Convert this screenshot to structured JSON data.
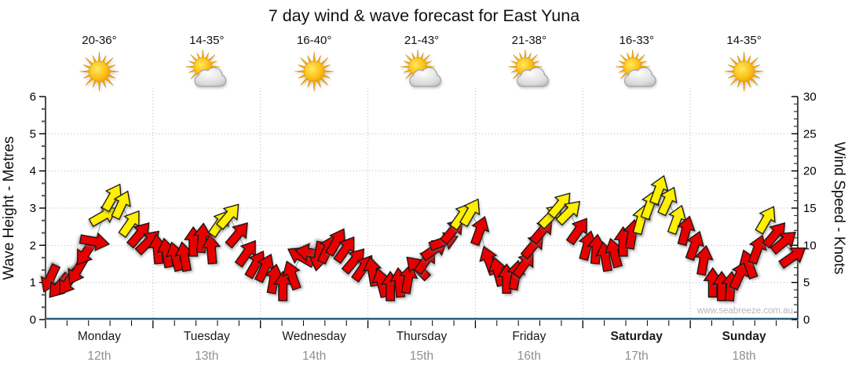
{
  "chart_data": {
    "type": "line",
    "title": "7 day wind & wave forecast for East Yuna",
    "ylabel_left": "Wave Height - Metres",
    "ylabel_right": "Wind Speed - Knots",
    "ylim_left": [
      0,
      6
    ],
    "ylim_right": [
      0,
      30
    ],
    "left_ticks": [
      0,
      1,
      2,
      3,
      4,
      5,
      6
    ],
    "right_ticks": [
      0,
      5,
      10,
      15,
      20,
      25,
      30
    ],
    "grid": "dotted horizontal at each major tick, dotted vertical at day boundaries",
    "watermark": "www.seabreeze.com.au",
    "hours": [
      1,
      3,
      5,
      7,
      9,
      11,
      13,
      15,
      17,
      19,
      21,
      23
    ],
    "wave_height_metres": "constant 0 (flat line along bottom axis)",
    "wind_color_rule": {
      "red_below_knots": 12.5,
      "yellow_at_or_above_knots": 12.5
    },
    "days": [
      {
        "name": "Monday",
        "date": "12th",
        "weekend": false,
        "temp_range": "20-36°",
        "sky": "sunny",
        "wind_knots": [
          5.5,
          4.5,
          5,
          6.5,
          9,
          10.5,
          14,
          16.5,
          15.5,
          13,
          11.5,
          10.5
        ],
        "wind_dir_deg": [
          205,
          220,
          215,
          210,
          215,
          100,
          60,
          30,
          25,
          35,
          40,
          45
        ]
      },
      {
        "name": "Tuesday",
        "date": "13th",
        "weekend": false,
        "temp_range": "14-35°",
        "sky": "partly-cloudy",
        "wind_knots": [
          9.5,
          9,
          8.5,
          8.5,
          10.5,
          11,
          9.5,
          13,
          14,
          11.5,
          9,
          7.5
        ],
        "wind_dir_deg": [
          355,
          350,
          345,
          350,
          0,
          5,
          355,
          35,
          40,
          40,
          35,
          30
        ]
      },
      {
        "name": "Wednesday",
        "date": "14th",
        "weekend": false,
        "temp_range": "16-40°",
        "sky": "sunny",
        "wind_knots": [
          7,
          5.5,
          4.5,
          6,
          8.5,
          9,
          8.5,
          9.5,
          10.5,
          9.5,
          8,
          7
        ],
        "wind_dir_deg": [
          25,
          10,
          0,
          340,
          300,
          280,
          190,
          25,
          30,
          35,
          40,
          35
        ]
      },
      {
        "name": "Thursday",
        "date": "15th",
        "weekend": false,
        "temp_range": "21-43°",
        "sky": "partly-cloudy",
        "wind_knots": [
          6.5,
          5,
          4.5,
          5,
          5.5,
          7,
          8,
          9.5,
          10.5,
          12,
          14,
          14.5
        ],
        "wind_dir_deg": [
          350,
          345,
          0,
          355,
          10,
          315,
          35,
          55,
          70,
          40,
          35,
          30
        ]
      },
      {
        "name": "Friday",
        "date": "16th",
        "weekend": false,
        "temp_range": "21-38°",
        "sky": "partly-cloudy",
        "wind_knots": [
          12,
          8,
          6.5,
          5.5,
          6,
          7.5,
          10,
          12,
          14,
          15.5,
          14.5,
          12
        ],
        "wind_dir_deg": [
          20,
          340,
          345,
          0,
          10,
          35,
          40,
          40,
          45,
          40,
          45,
          35
        ]
      },
      {
        "name": "Saturday",
        "date": "17th",
        "weekend": true,
        "temp_range": "16-33°",
        "sky": "partly-cloudy",
        "wind_knots": [
          10,
          9.5,
          8.5,
          9,
          10.5,
          11.5,
          13.5,
          15.5,
          17.5,
          16,
          13.5,
          12
        ],
        "wind_dir_deg": [
          15,
          5,
          350,
          345,
          0,
          10,
          15,
          20,
          20,
          25,
          20,
          15
        ]
      },
      {
        "name": "Sunday",
        "date": "18th",
        "weekend": true,
        "temp_range": "14-35°",
        "sky": "sunny",
        "wind_knots": [
          10,
          8,
          5,
          4.5,
          4.5,
          6,
          7.5,
          9.5,
          13.5,
          11.5,
          10.5,
          8.5
        ],
        "wind_dir_deg": [
          20,
          10,
          0,
          0,
          5,
          25,
          340,
          20,
          30,
          40,
          50,
          55
        ]
      }
    ],
    "colors": {
      "wind_light": "#e80000",
      "wind_moderate": "#ffef00",
      "arrow_outline": "#111111",
      "trend_line": "#999999",
      "wave_line": "#2a5a7a",
      "grid_line": "#b5b5b5",
      "axis_line": "#000000",
      "date_text": "#8f8f8f",
      "watermark_text": "#b8b8b8",
      "sun_core": "#f7a600",
      "sun_ray": "#f9b006",
      "cloud_fill": "#d9d9d9"
    }
  }
}
